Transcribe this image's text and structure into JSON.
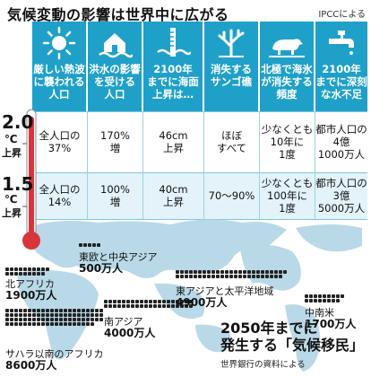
{
  "title": "気候変動の影響は世界中に広がる",
  "source": "IPCCによる",
  "columns": [
    {
      "icon": "sun-icon",
      "label": "厳しい熱波\nに襲われる\n人口"
    },
    {
      "icon": "flooded-house-icon",
      "label": "洪水の影響\nを受ける\n人口"
    },
    {
      "icon": "sea-level-gauge-icon",
      "label": "2100年\nまでに海面\n上昇は…"
    },
    {
      "icon": "coral-icon",
      "label": "消失する\nサンゴ礁"
    },
    {
      "icon": "polar-bear-icon",
      "label": "北極で海氷\nが消失する\n頻度"
    },
    {
      "icon": "faucet-icon",
      "label": "2100年\nまでに深刻\nな水不足"
    }
  ],
  "rows": [
    {
      "deg_num": "2.0",
      "deg_unit": "℃",
      "deg_label": "上昇",
      "cells": [
        "全人口の\n37%",
        "170%\n増",
        "46cm\n上昇",
        "ほぼ\nすべて",
        "少なくとも\n10年に\n1度",
        "都市人口の\n4億\n1000万人"
      ]
    },
    {
      "deg_num": "1.5",
      "deg_unit": "℃",
      "deg_label": "上昇",
      "cells": [
        "全人口の\n14%",
        "100%\n増",
        "40cm\n上昇",
        "70～90%",
        "少なくとも\n100年に\n1度",
        "都市人口の\n3億\n5000万人"
      ]
    }
  ],
  "regions": [
    {
      "name": "東欧と中央アジア",
      "value": "500万人"
    },
    {
      "name": "北アフリカ",
      "value": "1900万人"
    },
    {
      "name": "東アジアと太平洋地域",
      "value": "4900万人"
    },
    {
      "name": "南アジア",
      "value": "4000万人"
    },
    {
      "name": "中南米",
      "value": "1700万人"
    },
    {
      "name": "サハラ以南のアフリカ",
      "value": "8600万人"
    }
  ],
  "headline": "2050年までに\n発生する「気候移民」",
  "map_credit": "世界銀行の資料による",
  "colors": {
    "header": "#1fa0c8",
    "row_tint": "#e3f3f9",
    "map": "#b9d9e8",
    "thermo": "#d9343c"
  }
}
